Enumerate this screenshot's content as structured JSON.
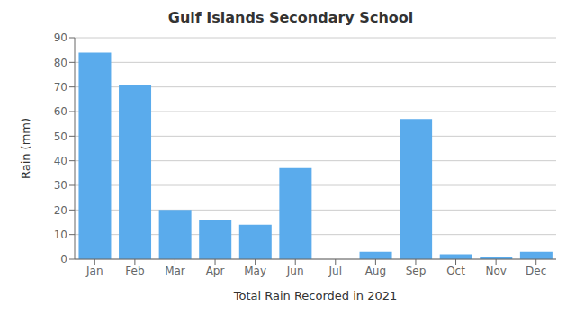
{
  "chart_data": {
    "type": "bar",
    "title": "Gulf Islands Secondary School",
    "xlabel": "Total Rain Recorded in 2021",
    "ylabel": "Rain (mm)",
    "categories": [
      "Jan",
      "Feb",
      "Mar",
      "Apr",
      "May",
      "Jun",
      "Jul",
      "Aug",
      "Sep",
      "Oct",
      "Nov",
      "Dec"
    ],
    "values": [
      84,
      71,
      20,
      16,
      14,
      37,
      0,
      3,
      57,
      2,
      1,
      3
    ],
    "color": "#5aabec",
    "ylim": [
      0,
      90
    ],
    "yticks": [
      0,
      10,
      20,
      30,
      40,
      50,
      60,
      70,
      80,
      90
    ],
    "grid": true
  }
}
